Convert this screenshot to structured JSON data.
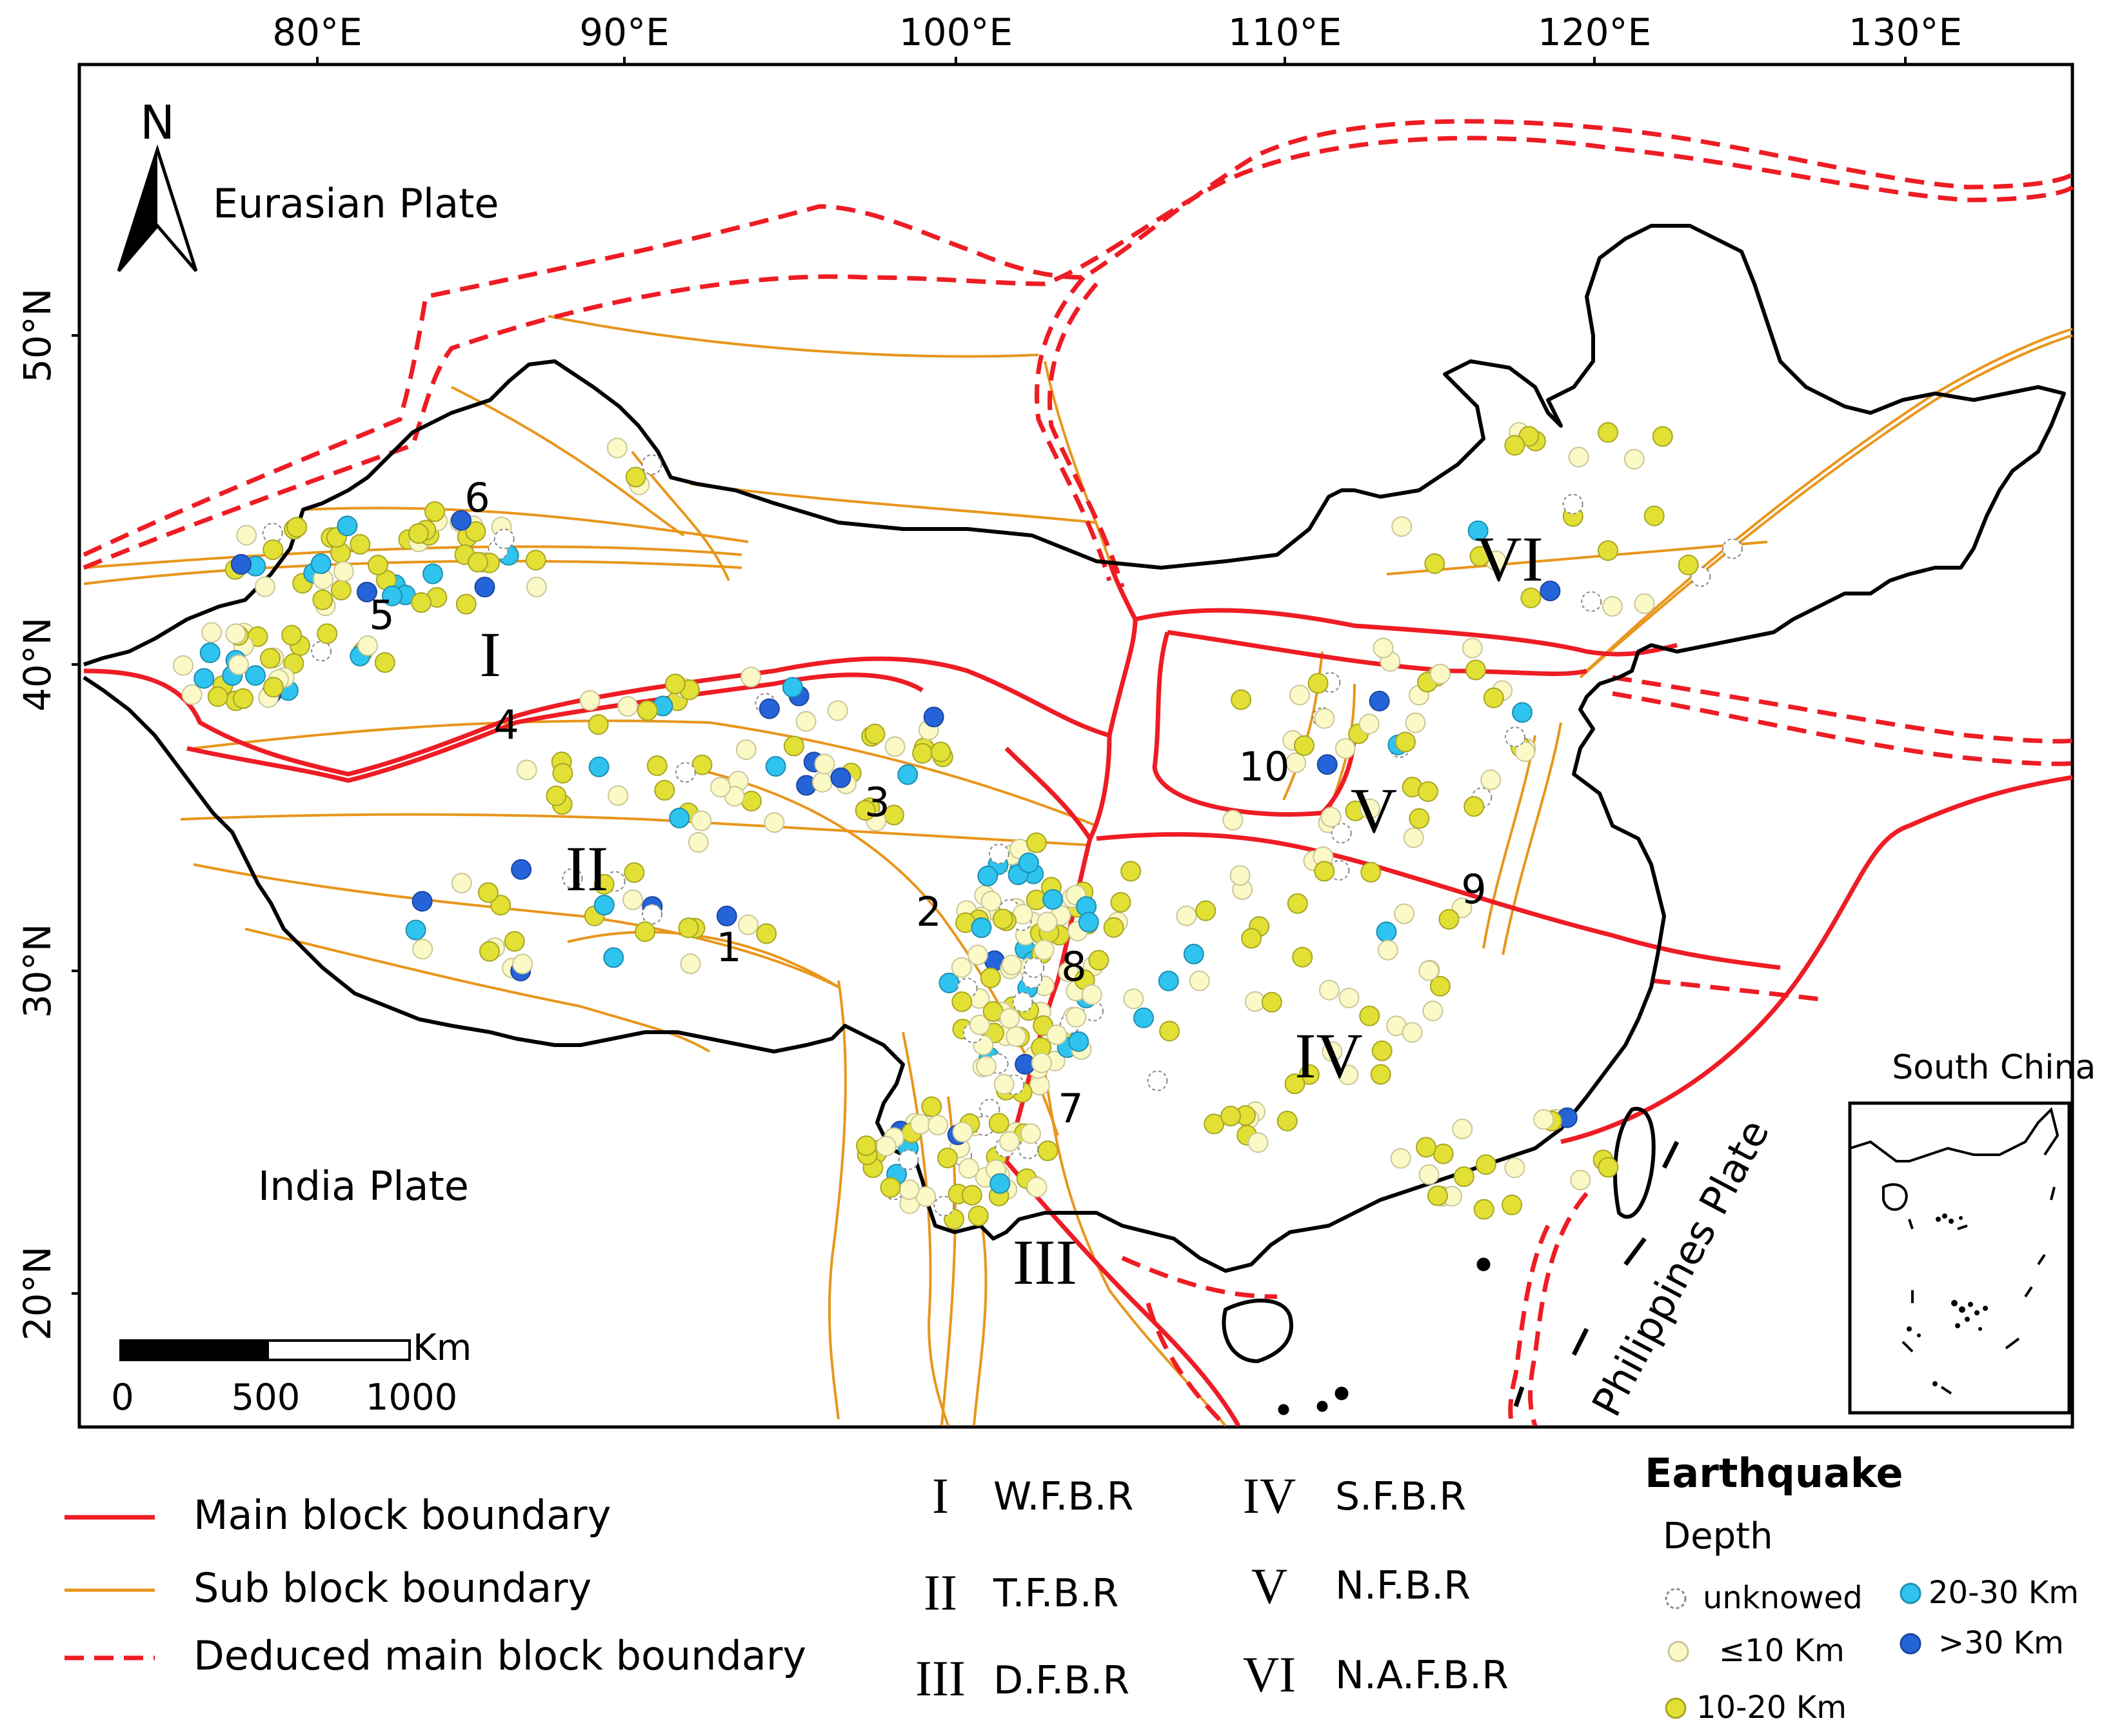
{
  "axes": {
    "top": [
      "80°E",
      "90°E",
      "100°E",
      "110°E",
      "120°E",
      "130°E"
    ],
    "left": [
      "50°N",
      "40°N",
      "30°N",
      "20°N"
    ]
  },
  "map_labels": {
    "north": "N",
    "eurasian_plate": "Eurasian Plate",
    "india_plate": "India Plate",
    "philippines_plate": "Philippines Plate",
    "south_china_sea": "South China Sea"
  },
  "regions": [
    "I",
    "II",
    "III",
    "IV",
    "V",
    "VI"
  ],
  "fault_numbers": [
    "1",
    "2",
    "3",
    "4",
    "5",
    "6",
    "7",
    "8",
    "9",
    "10"
  ],
  "scale_bar": {
    "unit": "Km",
    "ticks": [
      "0",
      "500",
      "1000"
    ]
  },
  "legend": {
    "main_boundary": "Main block boundary",
    "sub_boundary": "Sub block boundary",
    "deduced_boundary": "Deduced main block boundary",
    "regions": [
      {
        "numeral": "I",
        "name": "W.F.B.R"
      },
      {
        "numeral": "II",
        "name": "T.F.B.R"
      },
      {
        "numeral": "III",
        "name": "D.F.B.R"
      },
      {
        "numeral": "IV",
        "name": "S.F.B.R"
      },
      {
        "numeral": "V",
        "name": "N.F.B.R"
      },
      {
        "numeral": "VI",
        "name": "N.A.F.B.R"
      }
    ],
    "earthquake_title": "Earthquake",
    "depth_title": "Depth",
    "depth_classes": [
      {
        "label": "unknowed",
        "fill": "#ffffff",
        "stroke": "#888888"
      },
      {
        "label": "≤10 Km",
        "fill": "#fbf9c6",
        "stroke": "#c9c79a"
      },
      {
        "label": "10-20 Km",
        "fill": "#e2e035",
        "stroke": "#a8a624"
      },
      {
        "label": "20-30 Km",
        "fill": "#2ec4ef",
        "stroke": "#1e8fb0"
      },
      {
        "label": ">30 Km",
        "fill": "#2564d8",
        "stroke": "#1a46a0"
      }
    ]
  },
  "colors": {
    "main_boundary": "#ee1c24",
    "sub_boundary": "#e8961c",
    "country_outline": "#000000"
  }
}
